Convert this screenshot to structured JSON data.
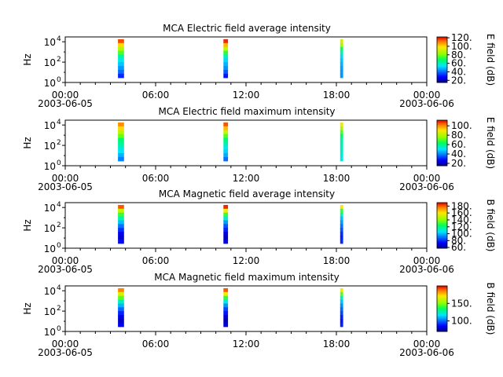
{
  "chart_data": [
    {
      "type": "heatmap",
      "title": "MCA  Electric field average intensity",
      "ylabel": "Hz",
      "yscale": "log",
      "ylim": [
        1,
        30000
      ],
      "y_ticks": [
        {
          "value": 1,
          "base": "10",
          "exp": "0"
        },
        {
          "value": 100,
          "base": "10",
          "exp": "2"
        },
        {
          "value": 10000,
          "base": "10",
          "exp": "4"
        }
      ],
      "x_range_hours": [
        0,
        24
      ],
      "x_ticks": [
        {
          "hour": 0,
          "label": "00:00",
          "date": "2003-06-05"
        },
        {
          "hour": 6,
          "label": "06:00",
          "date": ""
        },
        {
          "hour": 12,
          "label": "12:00",
          "date": ""
        },
        {
          "hour": 18,
          "label": "18:00",
          "date": ""
        },
        {
          "hour": 24,
          "label": "00:00",
          "date": "2003-06-06"
        }
      ],
      "colorbar": {
        "label": "E field (dB)",
        "range": [
          15,
          122
        ],
        "ticks": [
          "20.",
          "40.",
          "60.",
          "80.",
          "100.",
          "120."
        ],
        "tick_values": [
          20,
          40,
          60,
          80,
          100,
          120
        ]
      },
      "passes": [
        {
          "start_hour": 3.5,
          "end_hour": 3.9,
          "intensity": [
            115,
            100,
            88,
            75,
            62,
            55,
            50,
            45,
            40,
            32
          ]
        },
        {
          "start_hour": 10.5,
          "end_hour": 10.8,
          "intensity": [
            118,
            104,
            90,
            72,
            60,
            52,
            48,
            44,
            38,
            30
          ]
        },
        {
          "start_hour": 18.25,
          "end_hour": 18.45,
          "intensity": [
            92,
            85,
            70,
            58,
            52,
            50,
            48,
            46,
            45,
            45
          ]
        }
      ]
    },
    {
      "type": "heatmap",
      "title": "MCA  Electric field maximum intensity",
      "ylabel": "Hz",
      "yscale": "log",
      "ylim": [
        1,
        30000
      ],
      "y_ticks": [
        {
          "value": 1,
          "base": "10",
          "exp": "0"
        },
        {
          "value": 100,
          "base": "10",
          "exp": "2"
        },
        {
          "value": 10000,
          "base": "10",
          "exp": "4"
        }
      ],
      "x_range_hours": [
        0,
        24
      ],
      "x_ticks": [
        {
          "hour": 0,
          "label": "00:00",
          "date": "2003-06-05"
        },
        {
          "hour": 6,
          "label": "06:00",
          "date": ""
        },
        {
          "hour": 12,
          "label": "12:00",
          "date": ""
        },
        {
          "hour": 18,
          "label": "18:00",
          "date": ""
        },
        {
          "hour": 24,
          "label": "00:00",
          "date": "2003-06-06"
        }
      ],
      "colorbar": {
        "label": "E field (dB)",
        "range": [
          15,
          112
        ],
        "ticks": [
          "20.",
          "40.",
          "60.",
          "80.",
          "100."
        ],
        "tick_values": [
          20,
          40,
          60,
          80,
          100
        ]
      },
      "passes": [
        {
          "start_hour": 3.5,
          "end_hour": 3.9,
          "intensity": [
            100,
            92,
            82,
            72,
            62,
            58,
            55,
            50,
            45,
            40
          ]
        },
        {
          "start_hour": 10.5,
          "end_hour": 10.8,
          "intensity": [
            105,
            95,
            84,
            70,
            62,
            56,
            52,
            48,
            44,
            38
          ]
        },
        {
          "start_hour": 18.25,
          "end_hour": 18.45,
          "intensity": [
            90,
            80,
            70,
            62,
            58,
            56,
            55,
            54,
            53,
            52
          ]
        }
      ]
    },
    {
      "type": "heatmap",
      "title": "MCA  Magnetic field average intensity",
      "ylabel": "Hz",
      "yscale": "log",
      "ylim": [
        1,
        30000
      ],
      "y_ticks": [
        {
          "value": 1,
          "base": "10",
          "exp": "0"
        },
        {
          "value": 100,
          "base": "10",
          "exp": "2"
        },
        {
          "value": 10000,
          "base": "10",
          "exp": "4"
        }
      ],
      "x_range_hours": [
        0,
        24
      ],
      "x_ticks": [
        {
          "hour": 0,
          "label": "00:00",
          "date": "2003-06-05"
        },
        {
          "hour": 6,
          "label": "06:00",
          "date": ""
        },
        {
          "hour": 12,
          "label": "12:00",
          "date": ""
        },
        {
          "hour": 18,
          "label": "18:00",
          "date": ""
        },
        {
          "hour": 24,
          "label": "00:00",
          "date": "2003-06-06"
        }
      ],
      "colorbar": {
        "label": "B field (dB)",
        "range": [
          58,
          190
        ],
        "ticks": [
          "60.",
          "80.",
          "100.",
          "120.",
          "140.",
          "160.",
          "180."
        ],
        "tick_values": [
          60,
          80,
          100,
          120,
          140,
          160,
          180
        ]
      },
      "passes": [
        {
          "start_hour": 3.5,
          "end_hour": 3.9,
          "intensity": [
            180,
            150,
            130,
            115,
            100,
            90,
            80,
            72,
            68,
            75
          ]
        },
        {
          "start_hour": 10.5,
          "end_hour": 10.8,
          "intensity": [
            185,
            160,
            130,
            110,
            95,
            85,
            78,
            70,
            65,
            72
          ]
        },
        {
          "start_hour": 18.25,
          "end_hour": 18.45,
          "intensity": [
            160,
            130,
            115,
            100,
            95,
            90,
            85,
            80,
            78,
            80
          ]
        }
      ]
    },
    {
      "type": "heatmap",
      "title": "MCA  Magnetic field maximum intensity",
      "ylabel": "Hz",
      "yscale": "log",
      "ylim": [
        1,
        30000
      ],
      "y_ticks": [
        {
          "value": 1,
          "base": "10",
          "exp": "0"
        },
        {
          "value": 100,
          "base": "10",
          "exp": "2"
        },
        {
          "value": 10000,
          "base": "10",
          "exp": "4"
        }
      ],
      "x_range_hours": [
        0,
        24
      ],
      "x_ticks": [
        {
          "hour": 0,
          "label": "00:00",
          "date": "2003-06-05"
        },
        {
          "hour": 6,
          "label": "06:00",
          "date": ""
        },
        {
          "hour": 12,
          "label": "12:00",
          "date": ""
        },
        {
          "hour": 18,
          "label": "18:00",
          "date": ""
        },
        {
          "hour": 24,
          "label": "00:00",
          "date": "2003-06-06"
        }
      ],
      "colorbar": {
        "label": "B field (dB)",
        "range": [
          70,
          200
        ],
        "ticks": [
          "100.",
          "150."
        ],
        "tick_values": [
          100,
          150
        ]
      },
      "passes": [
        {
          "start_hour": 3.5,
          "end_hour": 3.9,
          "intensity": [
            185,
            165,
            145,
            125,
            110,
            100,
            90,
            82,
            78,
            85
          ]
        },
        {
          "start_hour": 10.5,
          "end_hour": 10.8,
          "intensity": [
            190,
            170,
            140,
            120,
            105,
            95,
            88,
            80,
            75,
            82
          ]
        },
        {
          "start_hour": 18.25,
          "end_hour": 18.45,
          "intensity": [
            170,
            145,
            125,
            112,
            105,
            100,
            95,
            90,
            88,
            90
          ]
        }
      ]
    }
  ]
}
